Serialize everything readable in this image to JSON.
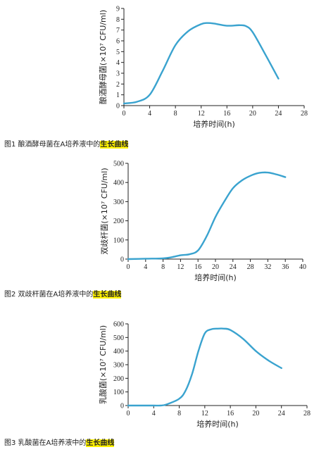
{
  "chart_data": [
    {
      "type": "line",
      "title": "",
      "caption": {
        "text": "图1 酿酒酵母菌在A培养液中的",
        "highlight": "生长曲线"
      },
      "xlabel": "培养时间(h)",
      "ylabel": "酿酒酵母菌(×10⁷ CFU/ml)",
      "xlim": [
        0,
        28
      ],
      "ylim": [
        0,
        9
      ],
      "xticks": [
        0,
        4,
        8,
        12,
        16,
        20,
        24,
        28
      ],
      "yticks": [
        0,
        1,
        2,
        3,
        4,
        5,
        6,
        7,
        8,
        9
      ],
      "line_color": "#3aa3cf",
      "series": [
        {
          "x": [
            0,
            2,
            4,
            6,
            8,
            10,
            12,
            13,
            14,
            16,
            18,
            19,
            20,
            22,
            24
          ],
          "y": [
            0.2,
            0.35,
            1.0,
            3.2,
            5.6,
            6.9,
            7.55,
            7.65,
            7.6,
            7.4,
            7.45,
            7.35,
            6.8,
            4.7,
            2.5
          ]
        }
      ]
    },
    {
      "type": "line",
      "title": "",
      "caption": {
        "text": "图2 双歧杆菌在A培养液中的",
        "highlight": "生长曲线"
      },
      "xlabel": "培养时间(h)",
      "ylabel": "双歧杆菌(×10⁷ CFU/ml)",
      "xlim": [
        0,
        40
      ],
      "ylim": [
        0,
        500
      ],
      "xticks": [
        0,
        4,
        8,
        12,
        16,
        20,
        24,
        28,
        32,
        36,
        40
      ],
      "yticks": [
        0,
        100,
        200,
        300,
        400,
        500
      ],
      "line_color": "#3aa3cf",
      "series": [
        {
          "x": [
            0,
            4,
            8,
            10,
            12,
            14,
            16,
            18,
            20,
            22,
            24,
            26,
            28,
            30,
            32,
            34,
            36
          ],
          "y": [
            0,
            2,
            4,
            10,
            20,
            25,
            45,
            120,
            220,
            300,
            370,
            410,
            435,
            450,
            452,
            442,
            428
          ]
        }
      ]
    },
    {
      "type": "line",
      "title": "",
      "caption": {
        "text": "图3 乳酸菌在A培养液中的",
        "highlight": "生长曲线"
      },
      "xlabel": "培养时间(h)",
      "ylabel": "乳酸菌(×10⁷ CFU/ml)",
      "xlim": [
        0,
        28
      ],
      "ylim": [
        0,
        600
      ],
      "xticks": [
        0,
        4,
        8,
        12,
        16,
        20,
        24,
        28
      ],
      "yticks": [
        0,
        100,
        200,
        300,
        400,
        500,
        600
      ],
      "line_color": "#3aa3cf",
      "series": [
        {
          "x": [
            0,
            2,
            4,
            5,
            6,
            8,
            9,
            10,
            11,
            12,
            13,
            14,
            15,
            16,
            18,
            20,
            22,
            24
          ],
          "y": [
            0,
            0,
            0,
            0,
            8,
            50,
            110,
            230,
            400,
            530,
            560,
            565,
            565,
            555,
            490,
            400,
            330,
            275
          ]
        }
      ]
    }
  ]
}
